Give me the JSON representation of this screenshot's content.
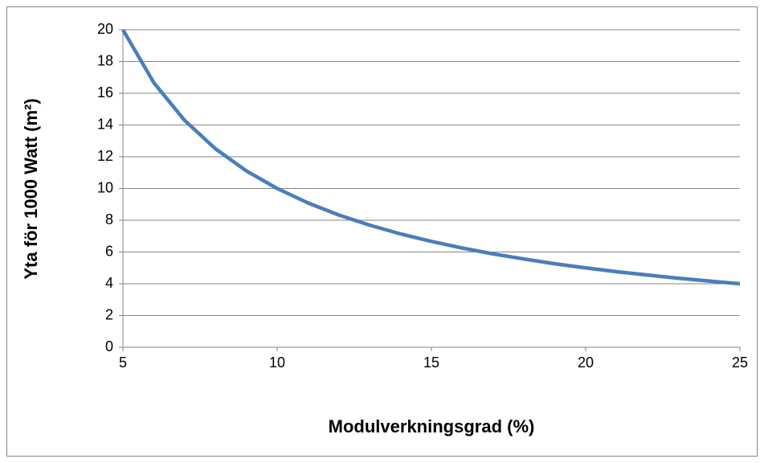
{
  "chart_data": {
    "type": "line",
    "x_label": "Modulverkningsgrad (%)",
    "y_label": "Yta för 1000 Watt (m²)",
    "x": [
      5,
      6,
      7,
      8,
      9,
      10,
      11,
      12,
      13,
      14,
      15,
      16,
      17,
      18,
      19,
      20,
      21,
      22,
      23,
      24,
      25
    ],
    "series": [
      {
        "color": "#4a7ebb",
        "values": [
          20,
          16.67,
          14.29,
          12.5,
          11.11,
          10,
          9.09,
          8.33,
          7.69,
          7.14,
          6.67,
          6.25,
          5.88,
          5.56,
          5.26,
          5,
          4.76,
          4.55,
          4.35,
          4.17,
          4
        ]
      }
    ],
    "xlim": [
      5,
      25
    ],
    "xticks": [
      5,
      10,
      15,
      20,
      25
    ],
    "ylim": [
      0,
      20
    ],
    "yticks": [
      0,
      2,
      4,
      6,
      8,
      10,
      12,
      14,
      16,
      18,
      20
    ],
    "grid": true
  }
}
